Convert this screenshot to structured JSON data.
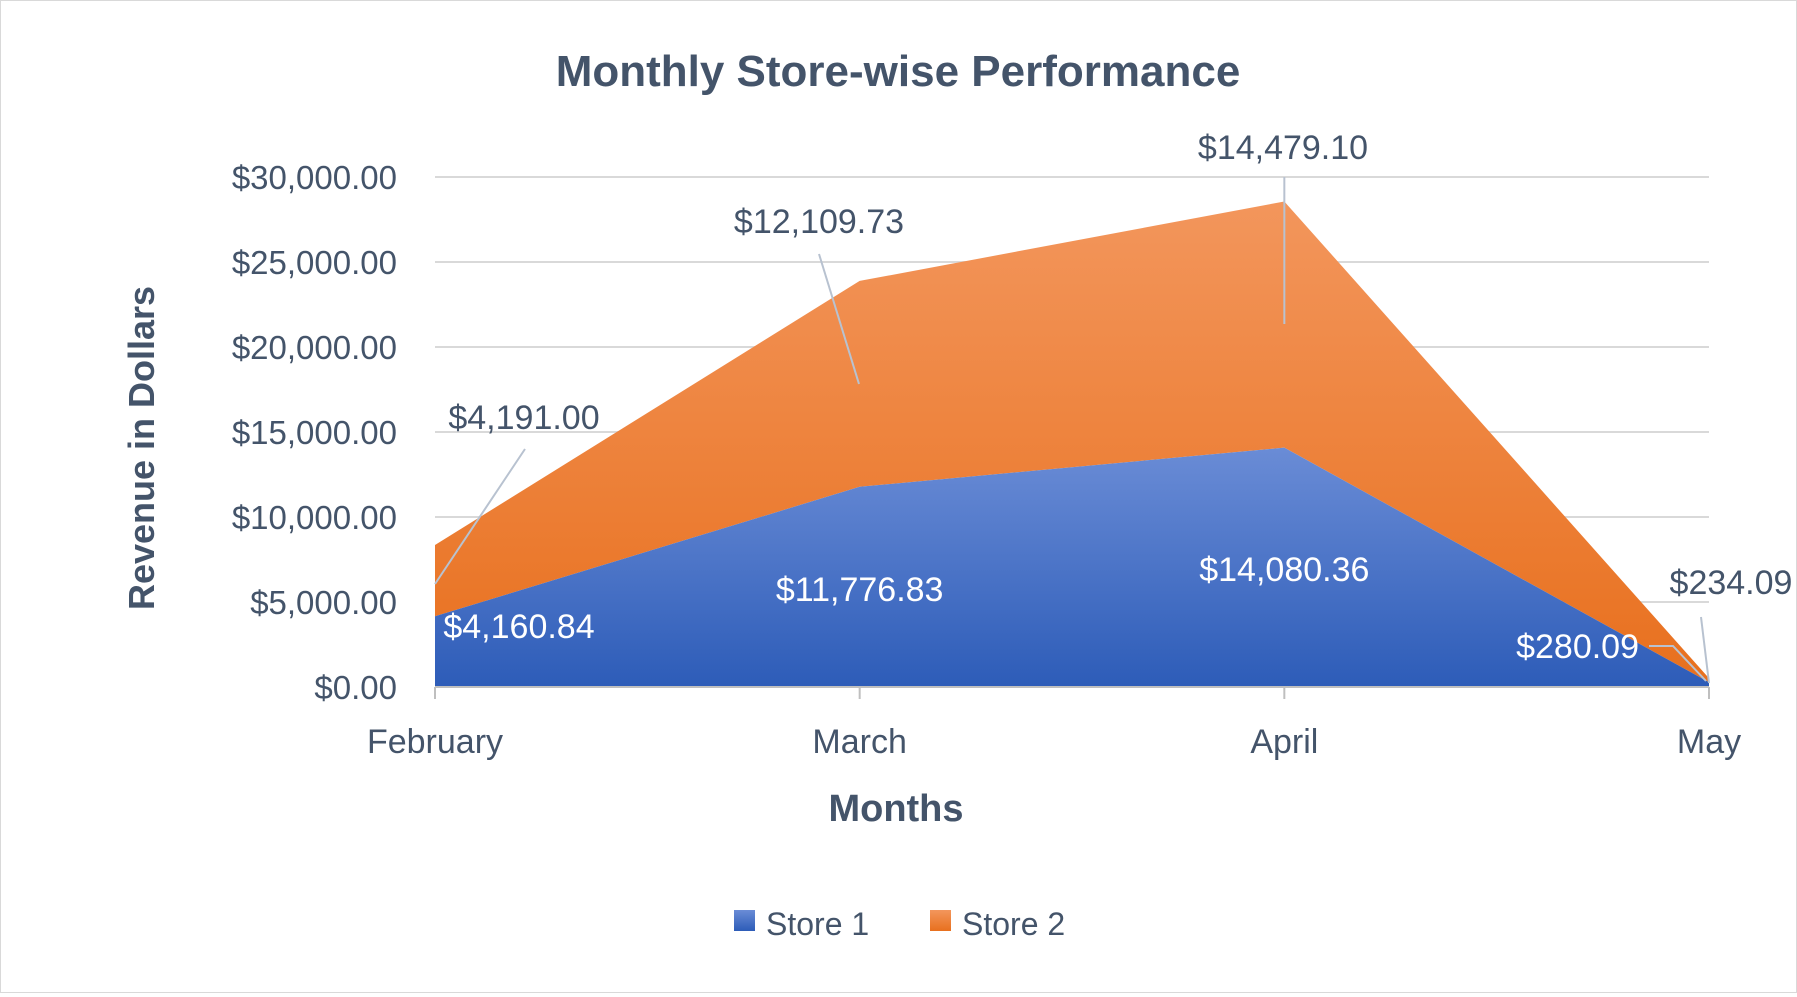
{
  "chart_data": {
    "type": "area",
    "stacked": true,
    "title": "Monthly Store-wise Performance",
    "xlabel": "Months",
    "ylabel": "Revenue in Dollars",
    "categories": [
      "February",
      "March",
      "April",
      "May"
    ],
    "ylim": [
      0,
      30000
    ],
    "yticks": [
      0,
      5000,
      10000,
      15000,
      20000,
      25000,
      30000
    ],
    "ytick_labels": [
      "$0.00",
      "$5,000.00",
      "$10,000.00",
      "$15,000.00",
      "$20,000.00",
      "$25,000.00",
      "$30,000.00"
    ],
    "grid": true,
    "legend_position": "bottom",
    "series": [
      {
        "name": "Store 1",
        "color": "#4472C4",
        "values": [
          4160.84,
          11776.83,
          14080.36,
          280.09
        ],
        "data_labels": [
          "$4,160.84",
          "$11,776.83",
          "$14,080.36",
          "$280.09"
        ]
      },
      {
        "name": "Store 2",
        "color": "#ED7D31",
        "values": [
          4191.0,
          12109.73,
          14479.1,
          234.09
        ],
        "data_labels": [
          "$4,191.00",
          "$12,109.73",
          "$14,479.10",
          "$234.09"
        ]
      }
    ]
  }
}
